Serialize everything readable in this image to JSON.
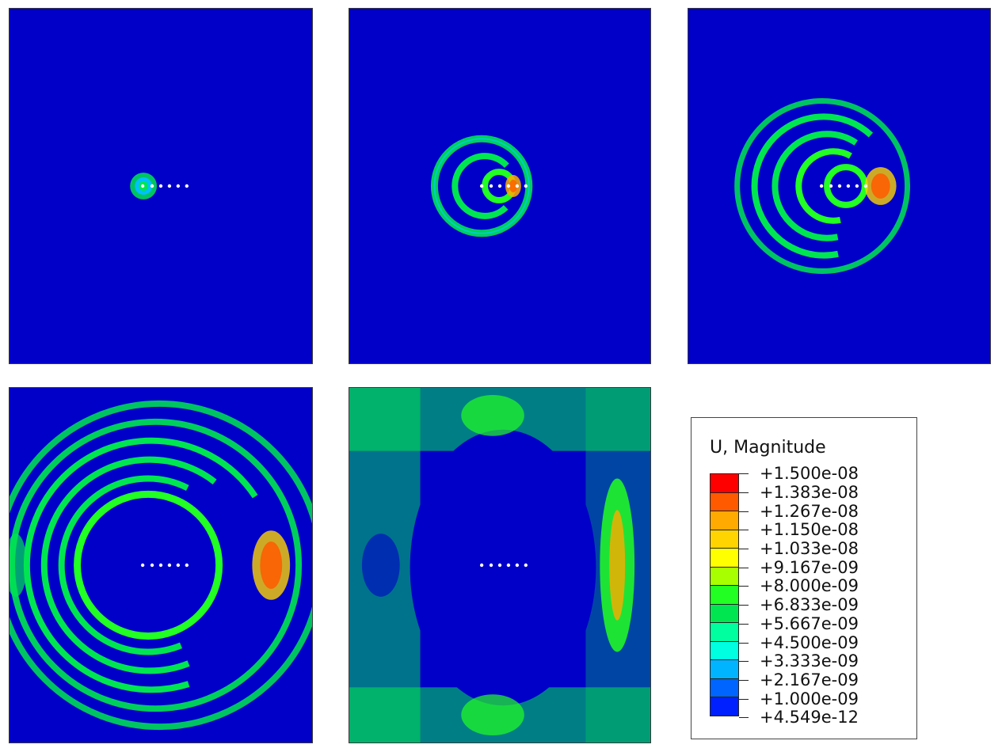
{
  "figure": {
    "panels": [
      {
        "id": "p1",
        "name": "contour-panel-step-1"
      },
      {
        "id": "p2",
        "name": "contour-panel-step-2"
      },
      {
        "id": "p3",
        "name": "contour-panel-step-3"
      },
      {
        "id": "p4",
        "name": "contour-panel-step-4"
      },
      {
        "id": "p5",
        "name": "contour-panel-step-5"
      }
    ],
    "sensor_count": 6,
    "background_color": "#0000c8"
  },
  "legend": {
    "title": "U, Magnitude",
    "values": [
      "+1.500e-08",
      "+1.383e-08",
      "+1.267e-08",
      "+1.150e-08",
      "+1.033e-08",
      "+9.167e-09",
      "+8.000e-09",
      "+6.833e-09",
      "+5.667e-09",
      "+4.500e-09",
      "+3.333e-09",
      "+2.167e-09",
      "+1.000e-09",
      "+4.549e-12"
    ],
    "colors": [
      "#ff0000",
      "#ff5a00",
      "#ffaa00",
      "#ffd400",
      "#ffff00",
      "#a8ff00",
      "#22ff22",
      "#00e650",
      "#00ff9f",
      "#00ffe1",
      "#00b4ff",
      "#0064ff",
      "#0020ff",
      "#0000ff"
    ]
  }
}
